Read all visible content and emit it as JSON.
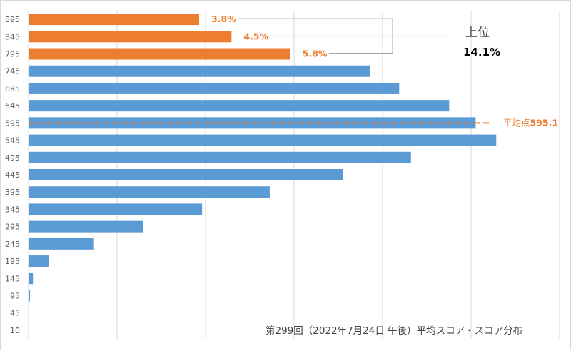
{
  "chart_data": {
    "type": "bar",
    "orientation": "horizontal",
    "title": "第299回（2022年7月24日 午後）平均スコア・スコア分布",
    "categories": [
      "895",
      "845",
      "795",
      "745",
      "695",
      "645",
      "595",
      "545",
      "495",
      "445",
      "395",
      "345",
      "295",
      "245",
      "195",
      "145",
      "95",
      "45",
      "10"
    ],
    "values": [
      5.8,
      6.9,
      8.9,
      11.6,
      12.6,
      14.3,
      15.2,
      15.9,
      13.0,
      10.7,
      8.2,
      5.9,
      3.9,
      2.2,
      0.7,
      0.15,
      0.05,
      0.01,
      0.02
    ],
    "highlight_count": 3,
    "xlim": [
      0,
      16.5
    ],
    "grid": true,
    "colors": {
      "top": "#ED7D31",
      "normal": "#5B9BD5",
      "grid": "#d9d9d9",
      "average": "#ED7D31"
    },
    "annotations": {
      "top_percents": [
        "3.8%",
        "4.5%",
        "5.8%"
      ],
      "top_label": "上位",
      "top_total": "14.1%",
      "average_prefix": "平均点",
      "average_value": "595.1",
      "average_category": "595"
    }
  }
}
